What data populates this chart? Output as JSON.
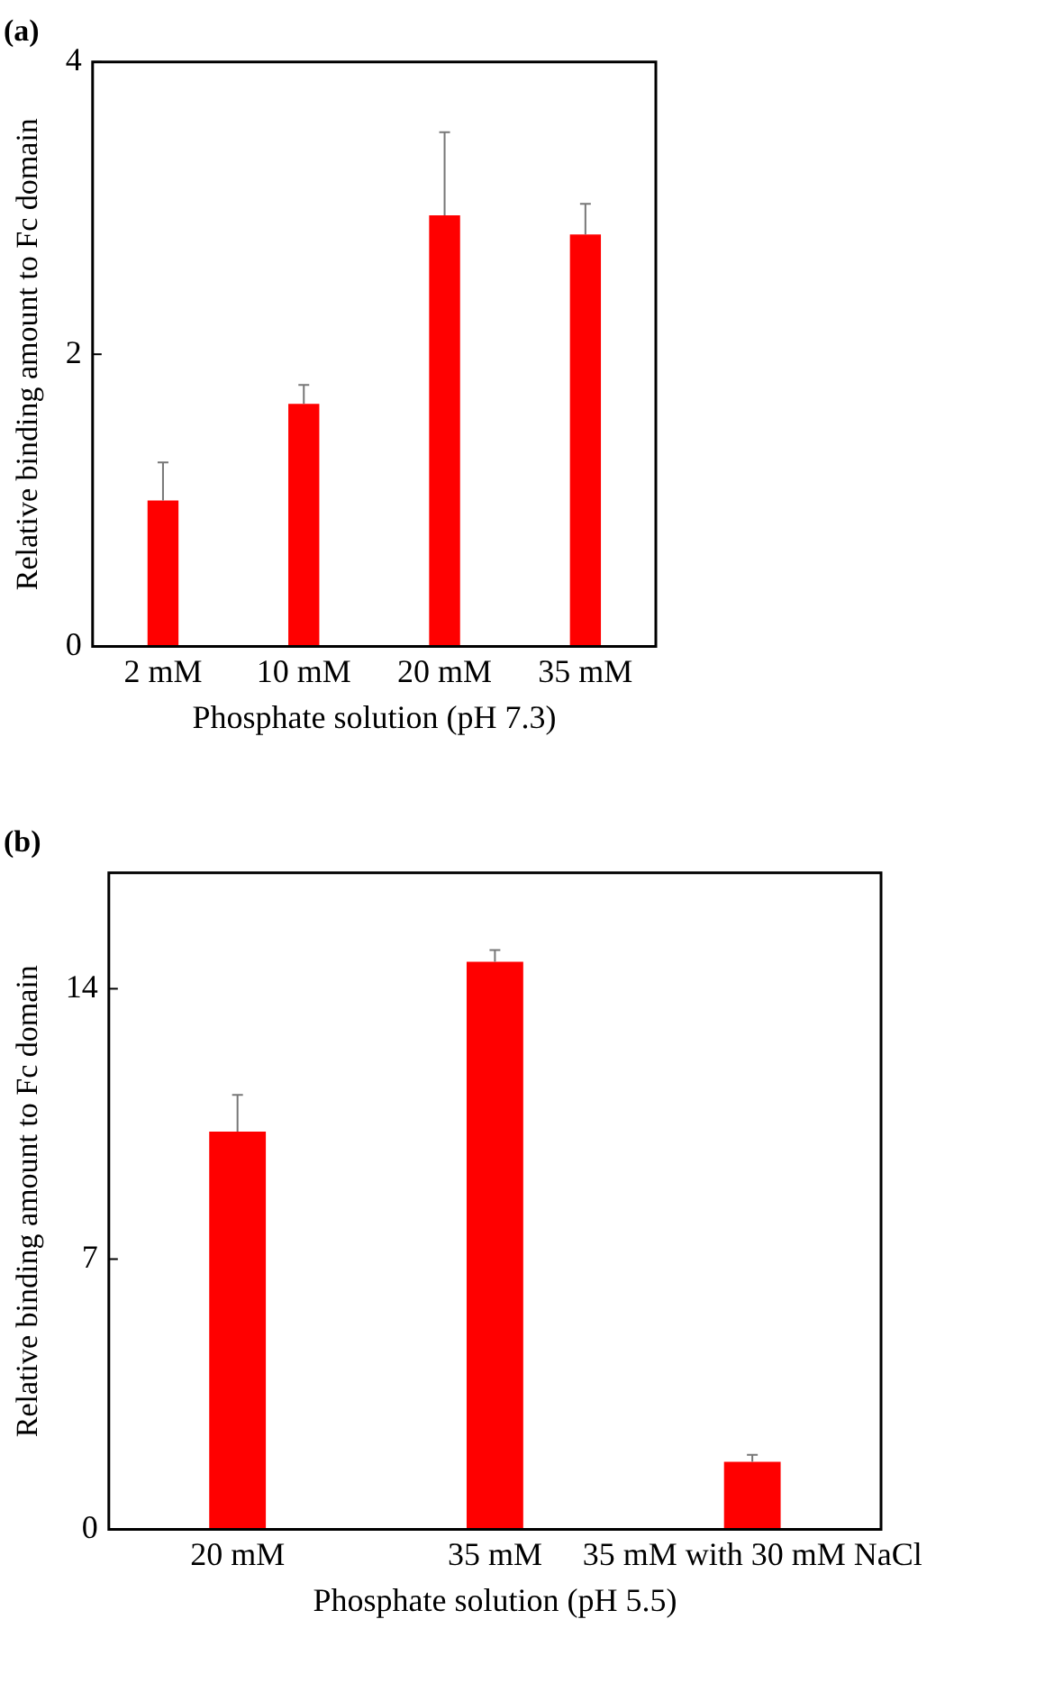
{
  "chart_data": [
    {
      "type": "bar",
      "title": "(a)",
      "xlabel": "Phosphate solution (pH 7.3)",
      "ylabel": "Relative binding amount to Fc domain",
      "categories": [
        "2 mM",
        "10 mM",
        "20 mM",
        "35 mM"
      ],
      "values": [
        1.0,
        1.66,
        2.95,
        2.82
      ],
      "errors": [
        [
          1.0,
          1.26
        ],
        [
          1.66,
          1.79
        ],
        [
          2.95,
          3.52
        ],
        [
          2.82,
          3.03
        ]
      ],
      "color": "#ff0000",
      "ylim": [
        0,
        4
      ],
      "yticks": [
        0,
        2,
        4
      ],
      "grid": false,
      "legend": false
    },
    {
      "type": "bar",
      "title": "(b)",
      "xlabel": "Phosphate solution (pH 5.5)",
      "ylabel": "Relative binding amount to Fc domain",
      "categories": [
        "20 mM",
        "35 mM",
        "35 mM with 30 mM NaCl"
      ],
      "values": [
        10.3,
        14.7,
        1.75
      ],
      "errors": [
        [
          10.3,
          11.25
        ],
        [
          14.7,
          15.0
        ],
        [
          1.75,
          1.93
        ]
      ],
      "color": "#ff0000",
      "ylim": [
        0,
        17
      ],
      "yticks": [
        0,
        7,
        14
      ],
      "grid": false,
      "legend": false
    }
  ]
}
